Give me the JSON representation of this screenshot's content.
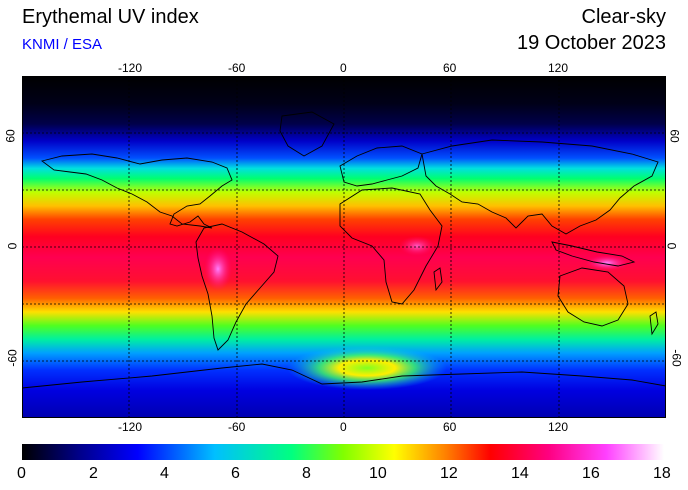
{
  "header": {
    "title": "Erythemal UV index",
    "credit": "KNMI / ESA",
    "condition": "Clear-sky",
    "date": "19 October 2023"
  },
  "map": {
    "projection": "equirectangular",
    "lon_range": [
      -180,
      180
    ],
    "lat_range": [
      -90,
      90
    ],
    "lon_ticks": [
      "-120",
      "-60",
      "0",
      "60",
      "120"
    ],
    "lat_ticks": [
      "60",
      "0",
      "-60"
    ],
    "gridlines": "dotted",
    "coastlines": true
  },
  "colorbar": {
    "min": 0,
    "max": 18,
    "ticks": [
      "0",
      "2",
      "4",
      "6",
      "8",
      "10",
      "12",
      "14",
      "16",
      "18"
    ],
    "colors": [
      "#000000",
      "#00008b",
      "#0000ff",
      "#00bfff",
      "#00ff80",
      "#80ff00",
      "#ffff00",
      "#ff8000",
      "#ff0000",
      "#ff0080",
      "#ff40ff",
      "#ffffff"
    ]
  }
}
